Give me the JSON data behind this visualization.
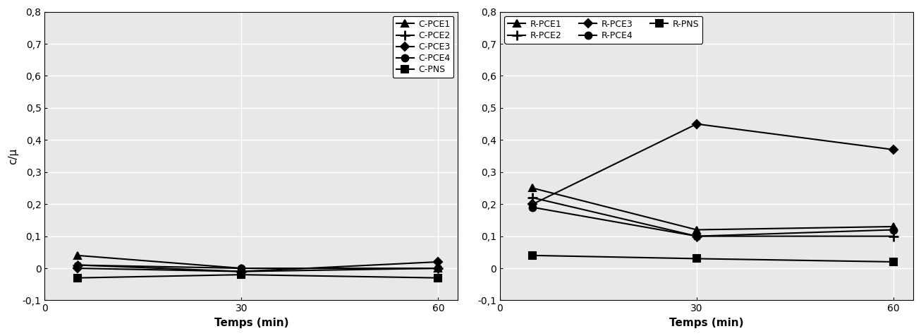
{
  "left": {
    "xlabel": "Temps (min)",
    "ylabel": "c/μ",
    "xlim": [
      0,
      63
    ],
    "ylim": [
      -0.1,
      0.8
    ],
    "yticks": [
      -0.1,
      0,
      0.1,
      0.2,
      0.3,
      0.4,
      0.5,
      0.6,
      0.7,
      0.8
    ],
    "xticks": [
      0,
      30,
      60
    ],
    "series": [
      {
        "label": "C-PCE1",
        "marker": "^",
        "x": [
          5,
          30,
          60
        ],
        "y": [
          0.04,
          0.0,
          0.0
        ]
      },
      {
        "label": "C-PCE2",
        "marker": "+",
        "x": [
          5,
          30,
          60
        ],
        "y": [
          0.01,
          -0.01,
          0.0
        ]
      },
      {
        "label": "C-PCE3",
        "marker": "D",
        "x": [
          5,
          30,
          60
        ],
        "y": [
          0.0,
          -0.01,
          0.02
        ]
      },
      {
        "label": "C-PCE4",
        "marker": "o",
        "x": [
          5,
          30,
          60
        ],
        "y": [
          0.01,
          0.0,
          0.0
        ]
      },
      {
        "label": "C-PNS",
        "marker": "s",
        "x": [
          5,
          30,
          60
        ],
        "y": [
          -0.03,
          -0.02,
          -0.03
        ]
      }
    ],
    "legend_ncol": 1,
    "legend_loc": "upper right"
  },
  "right": {
    "xlabel": "Temps (min)",
    "ylabel": "",
    "xlim": [
      0,
      63
    ],
    "ylim": [
      -0.1,
      0.8
    ],
    "yticks": [
      -0.1,
      0,
      0.1,
      0.2,
      0.3,
      0.4,
      0.5,
      0.6,
      0.7,
      0.8
    ],
    "xticks": [
      0,
      30,
      60
    ],
    "series": [
      {
        "label": "R-PCE1",
        "marker": "^",
        "x": [
          5,
          30,
          60
        ],
        "y": [
          0.25,
          0.12,
          0.13
        ]
      },
      {
        "label": "R-PCE2",
        "marker": "+",
        "x": [
          5,
          30,
          60
        ],
        "y": [
          0.22,
          0.1,
          0.1
        ]
      },
      {
        "label": "R-PCE3",
        "marker": "D",
        "x": [
          5,
          30,
          60
        ],
        "y": [
          0.2,
          0.45,
          0.37
        ]
      },
      {
        "label": "R-PCE4",
        "marker": "o",
        "x": [
          5,
          30,
          60
        ],
        "y": [
          0.19,
          0.1,
          0.12
        ]
      },
      {
        "label": "R-PNS",
        "marker": "s",
        "x": [
          5,
          30,
          60
        ],
        "y": [
          0.04,
          0.03,
          0.02
        ]
      }
    ],
    "legend_ncol": 3,
    "legend_loc": "upper left"
  },
  "figure_facecolor": "#ffffff",
  "plot_facecolor": "#e8e8e8",
  "line_color": "#000000",
  "grid_color": "#ffffff",
  "marker_sizes": {
    "^": 7,
    "+": 10,
    "D": 6,
    "o": 7,
    "s": 7
  },
  "linewidth": 1.5,
  "fontsize_tick": 10,
  "fontsize_label": 11,
  "fontsize_legend": 9
}
